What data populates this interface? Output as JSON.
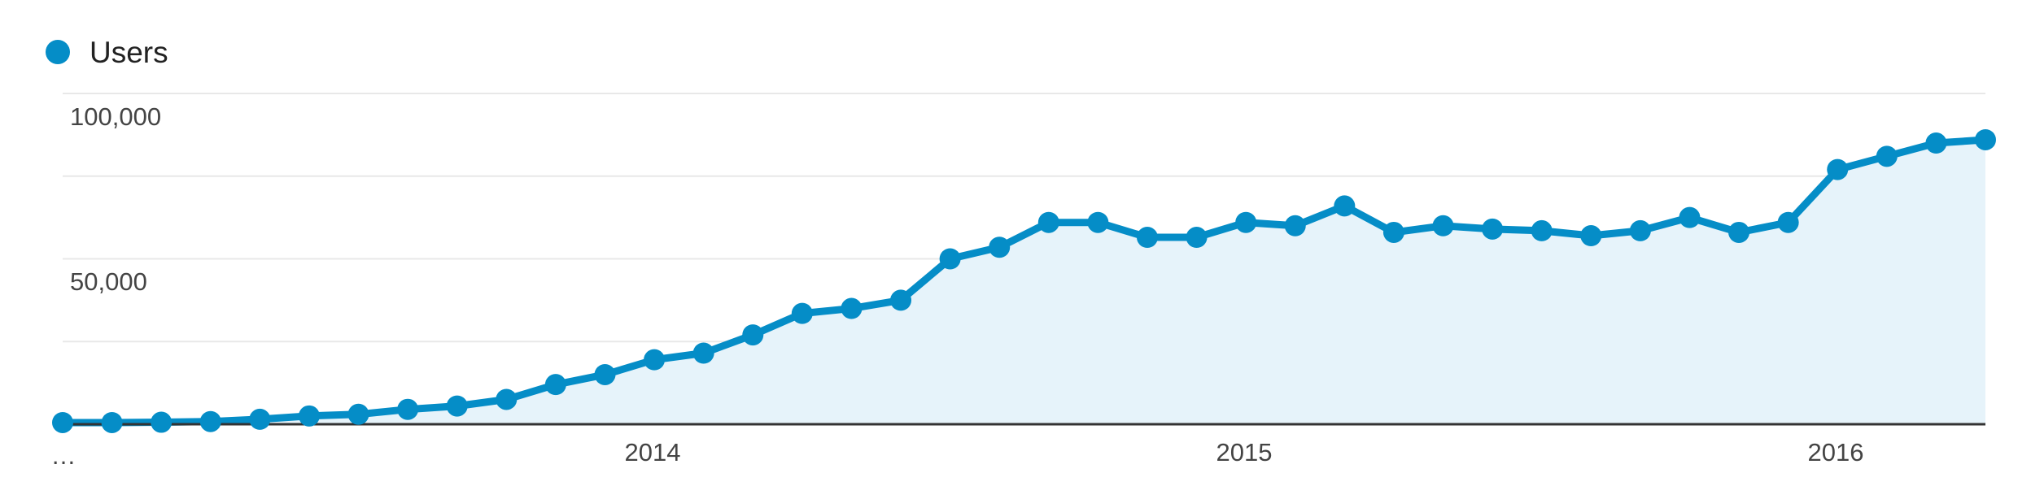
{
  "legend": {
    "label": "Users",
    "color": "#058dc7"
  },
  "colors": {
    "line": "#058dc7",
    "area": "#e6f3fa",
    "gridline": "#e8e8e8",
    "baseline": "#333333"
  },
  "chart_data": {
    "type": "area",
    "series": [
      {
        "name": "Users",
        "values": [
          500,
          500,
          600,
          800,
          1500,
          2500,
          3000,
          4500,
          5500,
          7500,
          12000,
          15000,
          19500,
          21500,
          27000,
          33500,
          35000,
          37500,
          50000,
          53500,
          61000,
          61000,
          56500,
          56500,
          61000,
          60000,
          66000,
          58000,
          60000,
          59000,
          58500,
          57000,
          58500,
          62500,
          58000,
          61000,
          77000,
          81000,
          85000,
          86000
        ]
      }
    ],
    "x_tick_labels": [
      "…",
      "2014",
      "2015",
      "2016"
    ],
    "y_tick_labels": [
      "100,000",
      "50,000"
    ],
    "ylim": [
      0,
      100000
    ],
    "grid": true,
    "legend_position": "top-left",
    "markers": true
  }
}
